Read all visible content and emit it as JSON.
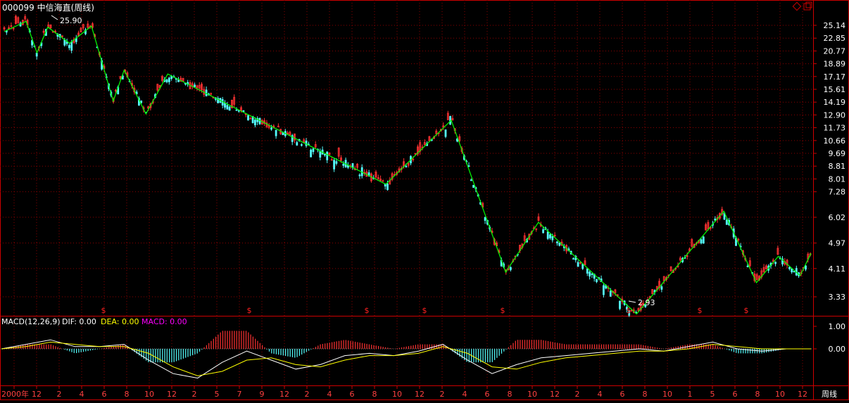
{
  "header": {
    "title": "000099 中信海直(周线)"
  },
  "price_axis": {
    "labels": [
      "25.14",
      "22.85",
      "20.77",
      "18.89",
      "17.17",
      "15.61",
      "14.19",
      "12.90",
      "11.73",
      "10.66",
      "9.69",
      "8.81",
      "8.01",
      "7.28",
      "6.02",
      "4.97",
      "4.11",
      "3.33"
    ]
  },
  "annotations": {
    "high_label": "25.90",
    "low_label": "2.93",
    "event_marker": "$"
  },
  "macd": {
    "title": "MACD(12,26,9)",
    "dif_label": "DIF: 0.00",
    "dea_label": "DEA: 0.00",
    "macd_label": "MACD: 0.00",
    "axis_labels": [
      "1.00",
      "0.00"
    ]
  },
  "time_axis": {
    "labels": [
      "2000年",
      "12",
      "2",
      "4",
      "6",
      "8",
      "10",
      "12",
      "2",
      "5",
      "7",
      "9",
      "12",
      "2",
      "4",
      "6",
      "8",
      "10",
      "12",
      "2",
      "4",
      "6",
      "8",
      "10",
      "12",
      "2",
      "4",
      "6",
      "8",
      "10",
      "1",
      "5",
      "6",
      "8",
      "10",
      "12"
    ],
    "period_label": "周线"
  },
  "colors": {
    "up": "#ff3232",
    "down": "#54fcfc",
    "zigzag": "#00ff00",
    "grid": "#8b0000",
    "dif": "#ffffff",
    "dea": "#ffff00",
    "macd_text": "#ff00ff",
    "axis_text": "#ffffff"
  },
  "chart_data": [
    {
      "type": "candlestick",
      "title": "000099 中信海直(周线)",
      "y_scale": "log",
      "ylim": [
        3.0,
        26.5
      ],
      "zigzag_points": [
        {
          "x": "1999-11",
          "y": 24.0
        },
        {
          "x": "2000-01",
          "y": 25.9
        },
        {
          "x": "2000-02",
          "y": 20.5
        },
        {
          "x": "2000-03",
          "y": 24.8
        },
        {
          "x": "2000-05",
          "y": 22.0
        },
        {
          "x": "2000-07",
          "y": 25.0
        },
        {
          "x": "2000-09",
          "y": 14.3
        },
        {
          "x": "2000-10",
          "y": 18.0
        },
        {
          "x": "2000-12",
          "y": 13.0
        },
        {
          "x": "2001-02",
          "y": 17.5
        },
        {
          "x": "2002-10",
          "y": 7.7
        },
        {
          "x": "2003-04",
          "y": 12.4
        },
        {
          "x": "2003-09",
          "y": 4.0
        },
        {
          "x": "2003-12",
          "y": 5.8
        },
        {
          "x": "2004-09",
          "y": 2.93
        },
        {
          "x": "2005-05",
          "y": 6.3
        },
        {
          "x": "2005-08",
          "y": 3.7
        },
        {
          "x": "2005-10",
          "y": 4.5
        },
        {
          "x": "2005-12",
          "y": 3.9
        },
        {
          "x": "2006-01",
          "y": 4.6
        }
      ]
    },
    {
      "type": "line",
      "title": "MACD(12,26,9)",
      "series": [
        {
          "name": "DIF",
          "values": [
            0.0,
            0.2,
            0.4,
            0.1,
            0.1,
            0.2,
            -0.5,
            -1.1,
            -1.3,
            -0.6,
            -0.1,
            -0.5,
            -0.9,
            -0.7,
            -0.3,
            -0.2,
            -0.3,
            -0.1,
            0.2,
            -0.5,
            -1.1,
            -0.7,
            -0.4,
            -0.3,
            -0.2,
            -0.1,
            0.0,
            -0.1,
            0.1,
            0.3,
            0.0,
            -0.1,
            0.0,
            0.0
          ]
        },
        {
          "name": "DEA",
          "values": [
            0.0,
            0.1,
            0.3,
            0.2,
            0.1,
            0.1,
            -0.2,
            -0.8,
            -1.2,
            -1.0,
            -0.5,
            -0.4,
            -0.7,
            -0.8,
            -0.5,
            -0.3,
            -0.3,
            -0.2,
            0.1,
            -0.2,
            -0.8,
            -0.9,
            -0.6,
            -0.4,
            -0.3,
            -0.2,
            -0.1,
            -0.1,
            0.0,
            0.2,
            0.1,
            0.0,
            0.0,
            0.0
          ]
        }
      ]
    }
  ]
}
